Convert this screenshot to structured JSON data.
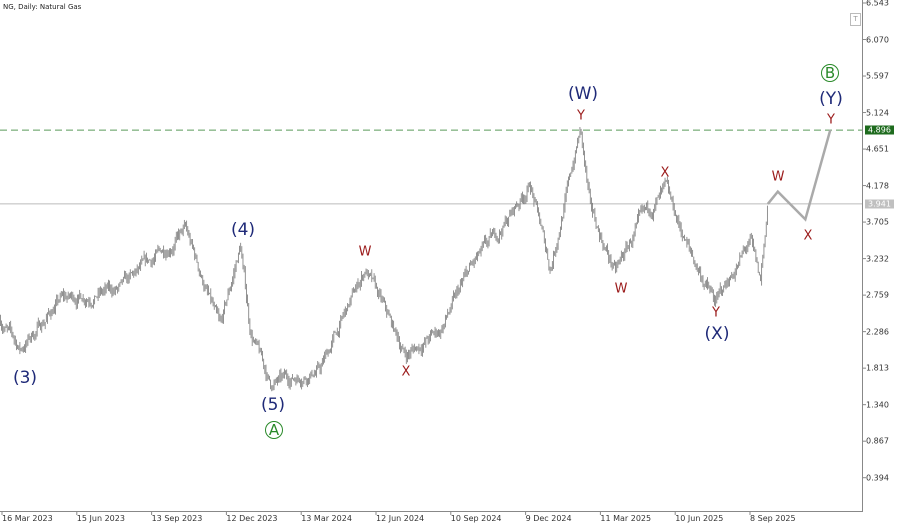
{
  "header": {
    "title": "NG, Daily:  Natural Gas"
  },
  "colors": {
    "bars": "#777777",
    "forecast": "#aaaaaa",
    "target_line": "#5a9a5a",
    "target_tag": "#1e6b1e",
    "current_line": "#bbbbbb",
    "current_tag": "#c0c0c0",
    "wave_major": "#1f2a78",
    "wave_minor": "#9b1b1b",
    "wave_circle": "#2a8a2a"
  },
  "chart_data": {
    "type": "ohlc",
    "title": "NG, Daily:  Natural Gas",
    "ylim": [
      0.15,
      6.58
    ],
    "y_ticks": [
      "6.543",
      "6.070",
      "5.597",
      "5.124",
      "4.651",
      "4.178",
      "3.705",
      "3.232",
      "2.759",
      "2.286",
      "1.813",
      "1.340",
      "0.867",
      "0.394"
    ],
    "x_ticks": [
      "16 Mar 2023",
      "15 Jun 2023",
      "13 Sep 2023",
      "12 Dec 2023",
      "13 Mar 2024",
      "12 Jun 2024",
      "10 Sep 2024",
      "9 Dec 2024",
      "11 Mar 2025",
      "10 Jun 2025",
      "8 Sep 2025"
    ],
    "price_path": [
      [
        "2023-03-14",
        2.44
      ],
      [
        "2023-04-07",
        2.05
      ],
      [
        "2023-05-25",
        2.7
      ],
      [
        "2023-08-05",
        2.83
      ],
      [
        "2023-10-22",
        3.6
      ],
      [
        "2023-12-03",
        2.3
      ],
      [
        "2023-12-27",
        3.4
      ],
      [
        "2024-01-08",
        2.3
      ],
      [
        "2024-02-01",
        1.6
      ],
      [
        "2024-04-01",
        1.8
      ],
      [
        "2024-05-25",
        3.1
      ],
      [
        "2024-07-12",
        1.98
      ],
      [
        "2024-08-23",
        2.3
      ],
      [
        "2024-09-28",
        3.1
      ],
      [
        "2024-11-03",
        3.6
      ],
      [
        "2024-12-09",
        4.2
      ],
      [
        "2025-01-02",
        3.1
      ],
      [
        "2025-02-07",
        4.9
      ],
      [
        "2025-02-19",
        3.85
      ],
      [
        "2025-03-21",
        3.05
      ],
      [
        "2025-04-20",
        3.7
      ],
      [
        "2025-05-20",
        4.1
      ],
      [
        "2025-06-19",
        3.3
      ],
      [
        "2025-07-19",
        2.65
      ],
      [
        "2025-08-30",
        3.45
      ],
      [
        "2025-09-11",
        2.9
      ],
      [
        "2025-09-20",
        3.94
      ]
    ],
    "forecast_path": [
      [
        "2025-09-20",
        3.94
      ],
      [
        "2025-10-02",
        4.1
      ],
      [
        "2025-11-04",
        3.74
      ],
      [
        "2025-12-04",
        4.9
      ]
    ],
    "horizontal_levels": [
      {
        "price": 4.896,
        "label": "4.896",
        "style": "dashed-green"
      },
      {
        "price": 3.941,
        "label": "3.941",
        "style": "solid-gray"
      }
    ],
    "wave_labels": {
      "w3": "(3)",
      "w4": "(4)",
      "w5": "(5)",
      "A": "A",
      "W": "(W)",
      "X": "(X)",
      "Y": "(Y)",
      "B": "B",
      "m_w1": "W",
      "m_x1": "X",
      "m_y1": "Y",
      "m_w2": "W",
      "m_x2": "X",
      "m_y2": "Y",
      "m_w3": "W",
      "m_x3": "X",
      "m_y3": "Y"
    }
  }
}
